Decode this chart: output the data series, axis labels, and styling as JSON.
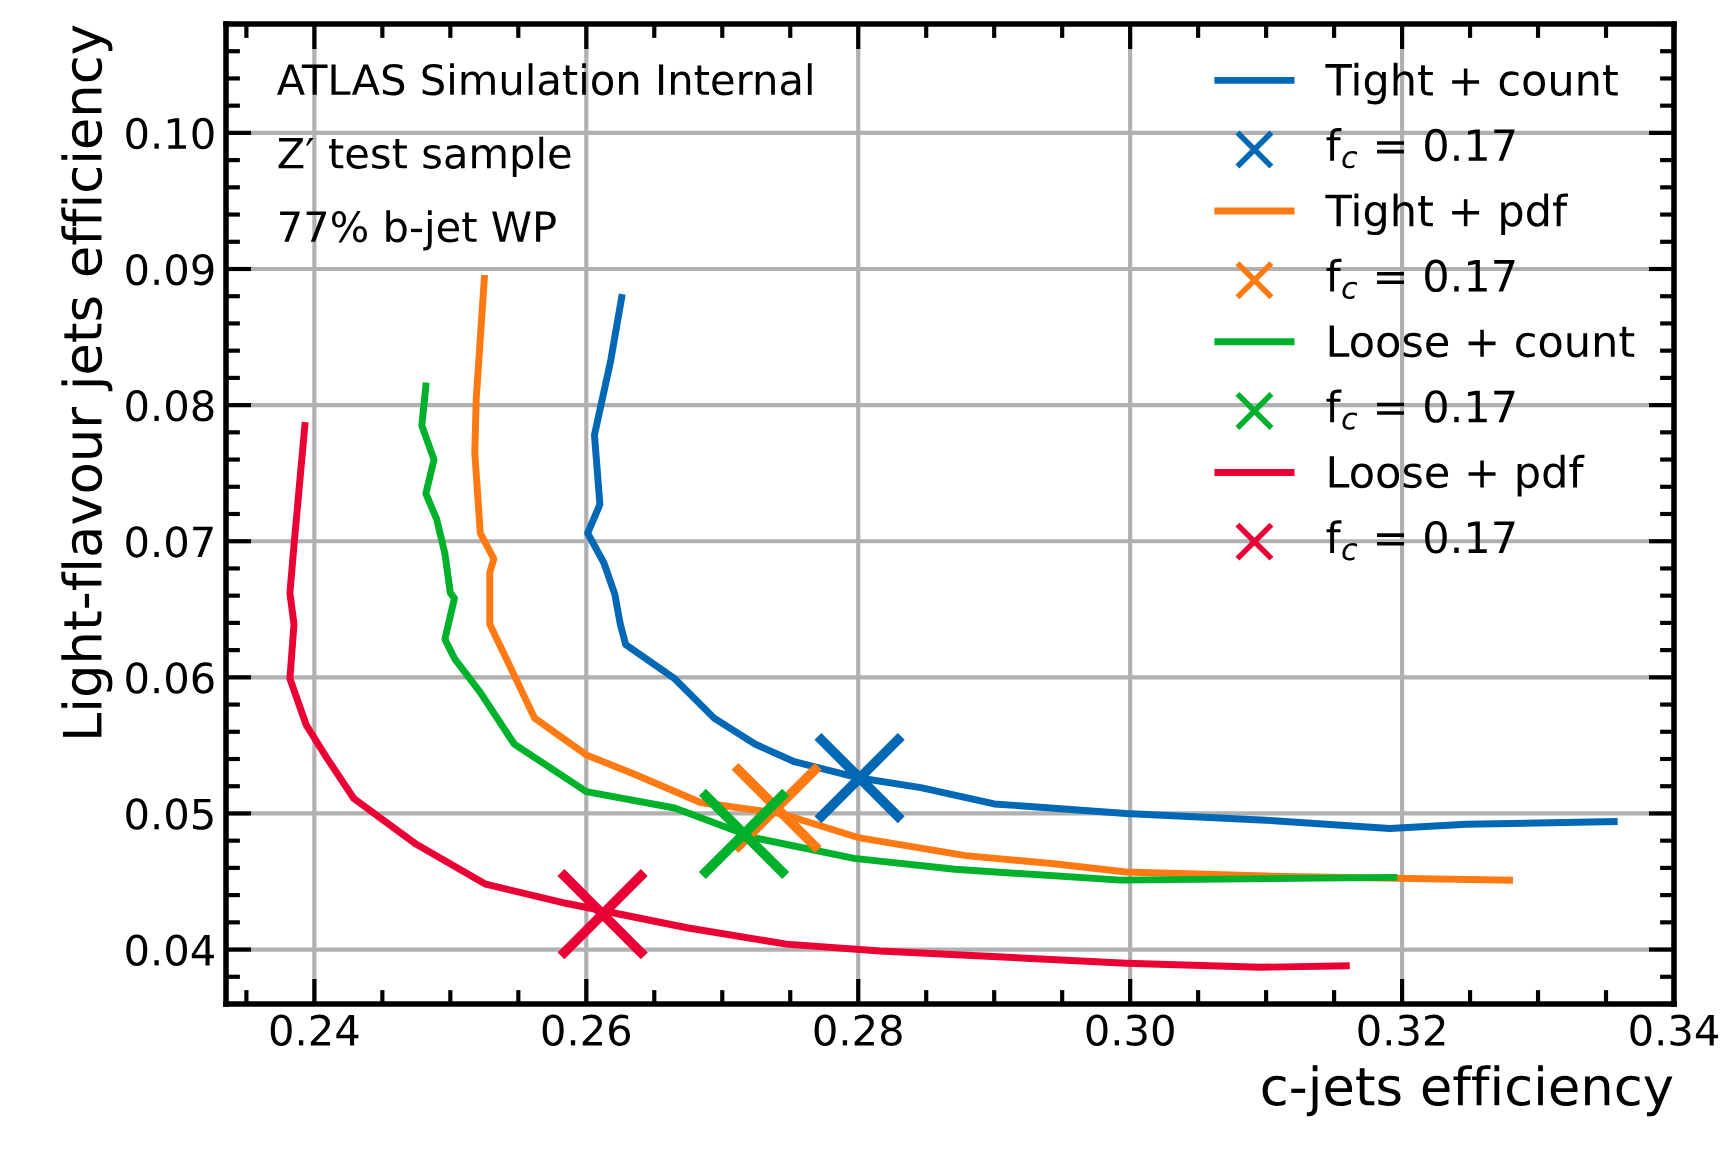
{
  "chart_data": {
    "type": "line",
    "xlabel": "c-jets efficiency",
    "ylabel": "Light-flavour jets efficiency",
    "annotations": [
      "ATLAS Simulation Internal",
      "Z′ test sample",
      "77% b-jet WP"
    ],
    "xlim": [
      0.2335,
      0.34
    ],
    "ylim": [
      0.036,
      0.108
    ],
    "xticks": [
      {
        "value": 0.24,
        "label": "0.24"
      },
      {
        "value": 0.26,
        "label": "0.26"
      },
      {
        "value": 0.28,
        "label": "0.28"
      },
      {
        "value": 0.3,
        "label": "0.30"
      },
      {
        "value": 0.32,
        "label": "0.32"
      },
      {
        "value": 0.34,
        "label": "0.34"
      }
    ],
    "yticks": [
      {
        "value": 0.04,
        "label": "0.04"
      },
      {
        "value": 0.05,
        "label": "0.05"
      },
      {
        "value": 0.06,
        "label": "0.06"
      },
      {
        "value": 0.07,
        "label": "0.07"
      },
      {
        "value": 0.08,
        "label": "0.08"
      },
      {
        "value": 0.09,
        "label": "0.09"
      },
      {
        "value": 0.1,
        "label": "0.10"
      }
    ],
    "grid": true,
    "legend": "top right",
    "line_style": "solid",
    "series": [
      {
        "name": "Tight + count",
        "color": "#0068b5",
        "x": [
          0.2626,
          0.2618,
          0.2606,
          0.261,
          0.2601,
          0.2613,
          0.2621,
          0.2625,
          0.2629,
          0.2665,
          0.2694,
          0.2724,
          0.2753,
          0.2801,
          0.2846,
          0.29,
          0.2997,
          0.31,
          0.3191,
          0.3247,
          0.3356
        ],
        "values": [
          0.0879,
          0.0833,
          0.0778,
          0.0727,
          0.0706,
          0.0684,
          0.0661,
          0.0639,
          0.0624,
          0.0599,
          0.057,
          0.0551,
          0.0538,
          0.0526,
          0.0519,
          0.0507,
          0.05,
          0.0495,
          0.0489,
          0.0492,
          0.0494
        ]
      },
      {
        "name": "f$_{c}$ = 0.17",
        "type": "scatter",
        "marker": "cross",
        "color": "#0068b5",
        "x": [
          0.2801
        ],
        "values": [
          0.0526
        ]
      },
      {
        "name": "Tight + pdf",
        "color": "#ff7a12",
        "x": [
          0.2525,
          0.2519,
          0.2518,
          0.2522,
          0.2532,
          0.2529,
          0.2529,
          0.2541,
          0.2562,
          0.26,
          0.2635,
          0.2684,
          0.2743,
          0.2801,
          0.2879,
          0.2944,
          0.2997,
          0.31,
          0.3279
        ],
        "values": [
          0.0893,
          0.0804,
          0.0765,
          0.0706,
          0.0687,
          0.0677,
          0.0639,
          0.0614,
          0.057,
          0.0543,
          0.0529,
          0.0508,
          0.05,
          0.0482,
          0.0469,
          0.0463,
          0.0457,
          0.0454,
          0.0451
        ]
      },
      {
        "name": "f$_{c}$ = 0.17",
        "type": "scatter",
        "marker": "cross",
        "color": "#ff7a12",
        "x": [
          0.274
        ],
        "values": [
          0.0504
        ]
      },
      {
        "name": "Loose + count",
        "color": "#00b12b",
        "x": [
          0.2482,
          0.2479,
          0.2488,
          0.2482,
          0.249,
          0.2496,
          0.25,
          0.2503,
          0.2496,
          0.2503,
          0.2522,
          0.2547,
          0.26,
          0.2665,
          0.2724,
          0.2797,
          0.2871,
          0.2993,
          0.3194
        ],
        "values": [
          0.0814,
          0.0785,
          0.076,
          0.0735,
          0.0716,
          0.0691,
          0.0662,
          0.0658,
          0.0628,
          0.0614,
          0.0589,
          0.0551,
          0.0516,
          0.0504,
          0.0482,
          0.0467,
          0.0459,
          0.0451,
          0.0453
        ]
      },
      {
        "name": "f$_{c}$ = 0.17",
        "type": "scatter",
        "marker": "cross",
        "color": "#00b12b",
        "x": [
          0.2716
        ],
        "values": [
          0.0485
        ]
      },
      {
        "name": "Loose + pdf",
        "color": "#ea0034",
        "x": [
          0.2393,
          0.2385,
          0.2382,
          0.2385,
          0.2382,
          0.2394,
          0.2409,
          0.2429,
          0.2474,
          0.2526,
          0.2585,
          0.2674,
          0.2747,
          0.2816,
          0.2997,
          0.3096,
          0.3159
        ],
        "values": [
          0.0785,
          0.0697,
          0.0662,
          0.0639,
          0.0599,
          0.0565,
          0.0541,
          0.0511,
          0.0478,
          0.0448,
          0.0434,
          0.0416,
          0.0404,
          0.0399,
          0.039,
          0.0387,
          0.0388
        ]
      },
      {
        "name": "f$_{c}$ = 0.17",
        "type": "scatter",
        "marker": "cross",
        "color": "#ea0034",
        "x": [
          0.2612
        ],
        "values": [
          0.0426
        ]
      }
    ]
  }
}
